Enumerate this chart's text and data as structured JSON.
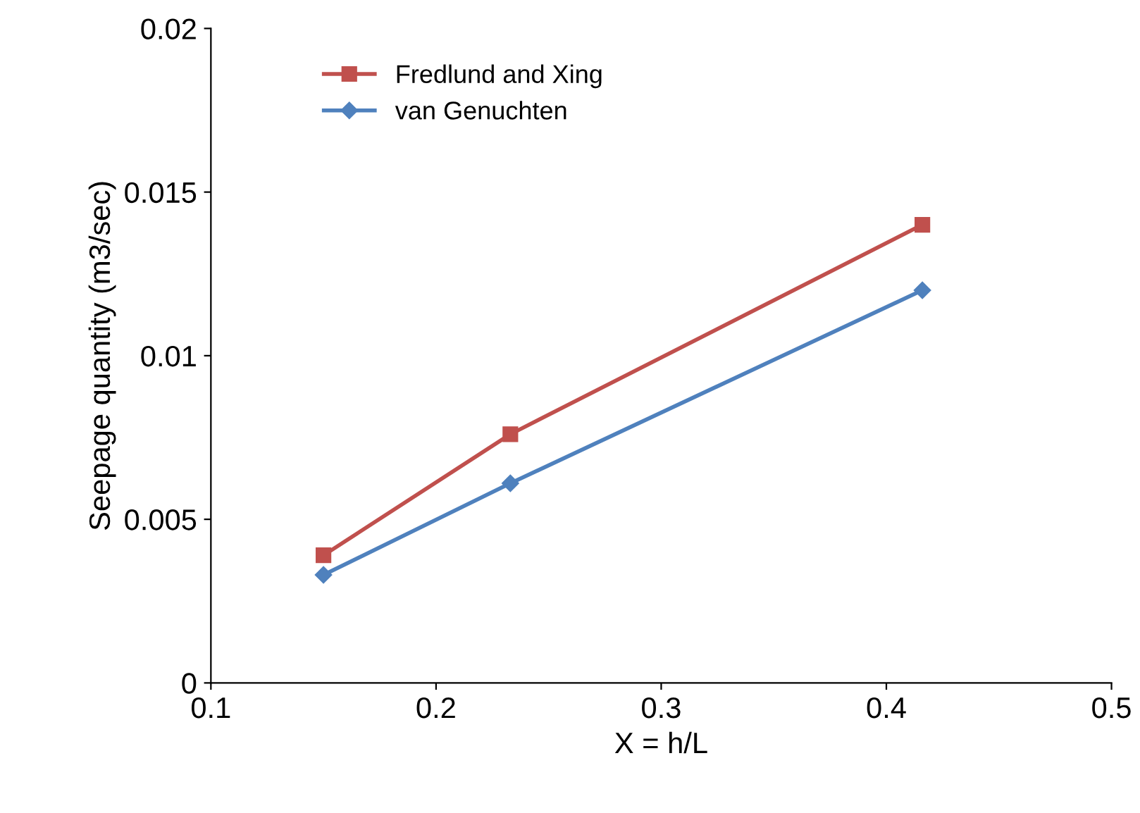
{
  "chart_data": {
    "type": "line",
    "xlabel": "X = h/L",
    "ylabel": "Seepage quantity (m3/sec)",
    "x": [
      0.15,
      0.233,
      0.416
    ],
    "series": [
      {
        "name": "Fredlund and Xing",
        "color": "#c0504d",
        "marker": "square",
        "values": [
          0.0039,
          0.0076,
          0.014
        ]
      },
      {
        "name": "van Genuchten",
        "color": "#4f81bd",
        "marker": "diamond",
        "values": [
          0.0033,
          0.0061,
          0.012
        ]
      }
    ],
    "xlim": [
      0.1,
      0.5
    ],
    "xticks": [
      0.1,
      0.2,
      0.3,
      0.4,
      0.5
    ],
    "ylim": [
      0,
      0.02
    ],
    "yticks": [
      0,
      0.005,
      0.01,
      0.015,
      0.02
    ],
    "grid": false,
    "legend": "top left",
    "line_style": "solid"
  }
}
